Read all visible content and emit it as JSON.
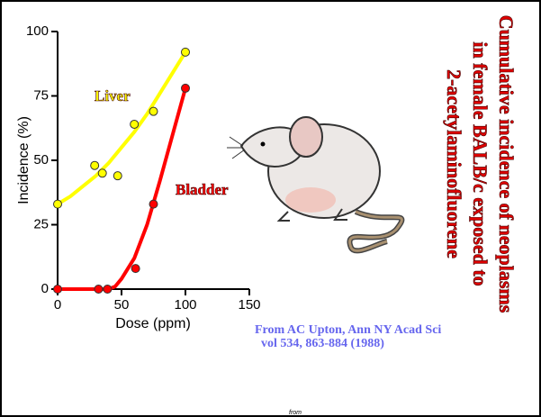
{
  "chart_data": {
    "type": "scatter",
    "title": [
      "Cumulative incidence of neoplasms",
      "in female BALB/c exposed to",
      "2-acetylaminofluorene"
    ],
    "x_label": "Dose (ppm)",
    "y_label": "Incidence (%)",
    "xlim": [
      0,
      150
    ],
    "xticks": [
      0,
      50,
      100,
      150
    ],
    "ylim": [
      0,
      100
    ],
    "yticks": [
      0,
      25,
      50,
      75,
      100
    ],
    "series": [
      {
        "name": "Liver",
        "color": "#ffff00",
        "x": [
          0,
          29,
          35,
          47,
          60,
          75,
          100
        ],
        "values": [
          33,
          48,
          45,
          44,
          64,
          69,
          92
        ],
        "curve_x": [
          0,
          10,
          20,
          30,
          40,
          50,
          60,
          70,
          80,
          90,
          100
        ],
        "curve": [
          33,
          36,
          40,
          44,
          49,
          55,
          61,
          68,
          76,
          84,
          92
        ]
      },
      {
        "name": "Bladder",
        "color": "#ff0000",
        "x": [
          0,
          32,
          39,
          61,
          75,
          100
        ],
        "values": [
          0,
          0,
          0,
          8,
          33,
          78
        ],
        "curve_x": [
          0,
          10,
          20,
          30,
          40,
          45,
          50,
          60,
          70,
          80,
          90,
          100
        ],
        "curve": [
          0,
          0,
          0,
          0,
          0,
          1,
          4,
          12,
          25,
          42,
          60,
          78
        ]
      }
    ],
    "citation": [
      "From AC Upton, Ann NY Acad Sci",
      "vol 534, 863-884 (1988)"
    ],
    "footer": "from"
  }
}
